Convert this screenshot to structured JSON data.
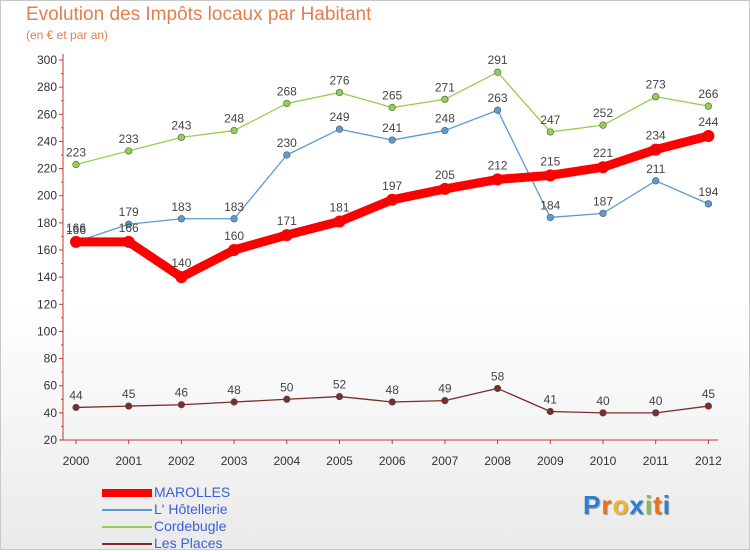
{
  "title": "Evolution des Impôts locaux par Habitant",
  "subtitle": "(en € et par an)",
  "logo": {
    "text": "Proxiti",
    "letters": [
      "P",
      "r",
      "o",
      "x",
      "i",
      "t",
      "i"
    ],
    "colors": [
      "#2a7fd4",
      "#e8721c",
      "#f2b233",
      "#2a7fd4",
      "#7cc24a",
      "#e8721c",
      "#2a7fd4"
    ]
  },
  "chart_data": {
    "type": "line",
    "title": "Evolution des Impôts locaux par Habitant",
    "subtitle": "(en € et par an)",
    "xlabel": "",
    "ylabel": "",
    "x": [
      "2000",
      "2001",
      "2002",
      "2003",
      "2004",
      "2005",
      "2006",
      "2007",
      "2008",
      "2009",
      "2010",
      "2011",
      "2012"
    ],
    "ylim": [
      20,
      300
    ],
    "yticks": [
      20,
      40,
      60,
      80,
      100,
      120,
      140,
      160,
      180,
      200,
      220,
      240,
      260,
      280,
      300
    ],
    "grid": false,
    "legend_position": "bottom-left",
    "series": [
      {
        "name": "MAROLLES",
        "color": "#ff0000",
        "values": [
          166,
          166,
          140,
          160,
          171,
          181,
          197,
          205,
          212,
          215,
          221,
          234,
          244
        ]
      },
      {
        "name": "L' Hôtellerie",
        "color": "#5b9bd5",
        "values": [
          166,
          179,
          183,
          183,
          230,
          249,
          241,
          248,
          263,
          184,
          187,
          211,
          194
        ]
      },
      {
        "name": "Cordebugle",
        "color": "#92d050",
        "values": [
          223,
          233,
          243,
          248,
          268,
          276,
          265,
          271,
          291,
          247,
          252,
          273,
          266
        ]
      },
      {
        "name": "Les Places",
        "color": "#7b2c2c",
        "values": [
          44,
          45,
          46,
          48,
          50,
          52,
          48,
          49,
          58,
          41,
          40,
          40,
          45
        ]
      }
    ]
  }
}
